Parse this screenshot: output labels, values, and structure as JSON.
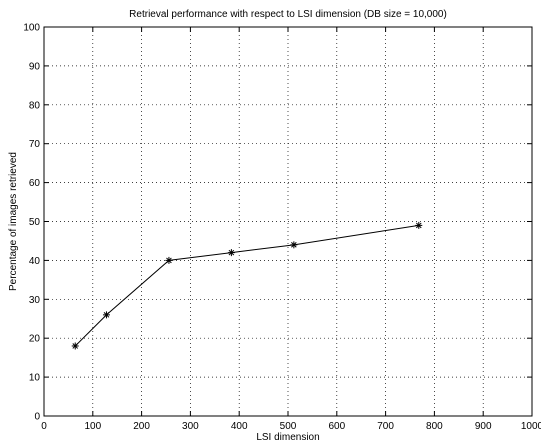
{
  "chart_data": {
    "type": "line",
    "title": "Retrieval performance with respect to LSI dimension (DB size = 10,000)",
    "xlabel": "LSI dimension",
    "ylabel": "Percentage of images retrieved",
    "xlim": [
      0,
      1000
    ],
    "ylim": [
      0,
      100
    ],
    "x_ticks": [
      0,
      100,
      200,
      300,
      400,
      500,
      600,
      700,
      800,
      900,
      1000
    ],
    "y_ticks": [
      0,
      10,
      20,
      30,
      40,
      50,
      60,
      70,
      80,
      90,
      100
    ],
    "grid": true,
    "marker": "asterisk",
    "line_color": "#000000",
    "series": [
      {
        "x": [
          64,
          128,
          256,
          384,
          512,
          768
        ],
        "values": [
          18,
          26,
          40,
          42,
          44,
          49
        ]
      }
    ]
  }
}
